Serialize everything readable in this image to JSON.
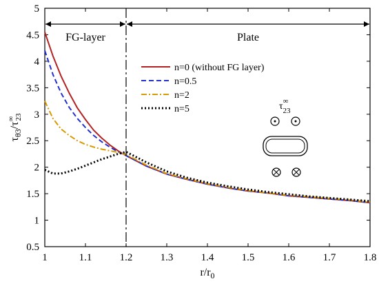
{
  "chart_data": {
    "type": "line",
    "title": "",
    "xlabel": "r/r0",
    "ylabel": "τθ3/τ∞23",
    "xlim": [
      1,
      1.8
    ],
    "ylim": [
      0.5,
      5
    ],
    "x_ticks": [
      "1",
      "1.1",
      "1.2",
      "1.3",
      "1.4",
      "1.5",
      "1.6",
      "1.7",
      "1.8"
    ],
    "y_ticks": [
      "0.5",
      "1",
      "1.5",
      "2",
      "2.5",
      "3",
      "3.5",
      "4",
      "4.5",
      "5"
    ],
    "grid": false,
    "legend_position": "top-right",
    "regions": [
      {
        "label": "FG-layer",
        "x_start": 1.0,
        "x_end": 1.2
      },
      {
        "label": "Plate",
        "x_start": 1.2,
        "x_end": 1.8
      }
    ],
    "boundary_x": 1.2,
    "inset": {
      "label": "τ∞23"
    },
    "series": [
      {
        "name": "n=0 (without FG layer)",
        "color": "#b22222",
        "dash": "solid",
        "x": [
          1.0,
          1.02,
          1.04,
          1.06,
          1.08,
          1.1,
          1.12,
          1.14,
          1.16,
          1.18,
          1.2,
          1.25,
          1.3,
          1.35,
          1.4,
          1.45,
          1.5,
          1.55,
          1.6,
          1.65,
          1.7,
          1.75,
          1.8
        ],
        "values": [
          4.55,
          4.1,
          3.72,
          3.4,
          3.12,
          2.9,
          2.7,
          2.55,
          2.42,
          2.31,
          2.22,
          2.02,
          1.87,
          1.77,
          1.68,
          1.61,
          1.55,
          1.51,
          1.46,
          1.43,
          1.4,
          1.37,
          1.33
        ]
      },
      {
        "name": "n=0.5",
        "color": "#1f2fd0",
        "dash": "dashed",
        "x": [
          1.0,
          1.02,
          1.04,
          1.06,
          1.08,
          1.1,
          1.12,
          1.14,
          1.16,
          1.18,
          1.2,
          1.25,
          1.3,
          1.35,
          1.4,
          1.45,
          1.5,
          1.55,
          1.6,
          1.65,
          1.7,
          1.75,
          1.8
        ],
        "values": [
          4.2,
          3.75,
          3.4,
          3.13,
          2.92,
          2.75,
          2.6,
          2.48,
          2.38,
          2.29,
          2.22,
          2.02,
          1.87,
          1.77,
          1.68,
          1.61,
          1.55,
          1.51,
          1.46,
          1.43,
          1.4,
          1.37,
          1.33
        ]
      },
      {
        "name": "n=2",
        "color": "#d99a00",
        "dash": "dashdot",
        "x": [
          1.0,
          1.02,
          1.04,
          1.06,
          1.08,
          1.1,
          1.12,
          1.14,
          1.16,
          1.18,
          1.2,
          1.25,
          1.3,
          1.35,
          1.4,
          1.45,
          1.5,
          1.55,
          1.6,
          1.65,
          1.7,
          1.75,
          1.8
        ],
        "values": [
          3.25,
          2.92,
          2.72,
          2.6,
          2.5,
          2.43,
          2.38,
          2.34,
          2.31,
          2.28,
          2.24,
          2.04,
          1.88,
          1.78,
          1.69,
          1.62,
          1.56,
          1.51,
          1.47,
          1.44,
          1.41,
          1.38,
          1.34
        ]
      },
      {
        "name": "n=5",
        "color": "#000000",
        "dash": "dotted",
        "x": [
          1.0,
          1.02,
          1.04,
          1.06,
          1.08,
          1.1,
          1.12,
          1.14,
          1.16,
          1.18,
          1.2,
          1.25,
          1.3,
          1.35,
          1.4,
          1.45,
          1.5,
          1.55,
          1.6,
          1.65,
          1.7,
          1.75,
          1.8
        ],
        "values": [
          1.95,
          1.88,
          1.88,
          1.92,
          1.97,
          2.03,
          2.09,
          2.15,
          2.2,
          2.25,
          2.29,
          2.09,
          1.92,
          1.8,
          1.71,
          1.64,
          1.58,
          1.53,
          1.49,
          1.45,
          1.42,
          1.39,
          1.36
        ]
      }
    ]
  }
}
